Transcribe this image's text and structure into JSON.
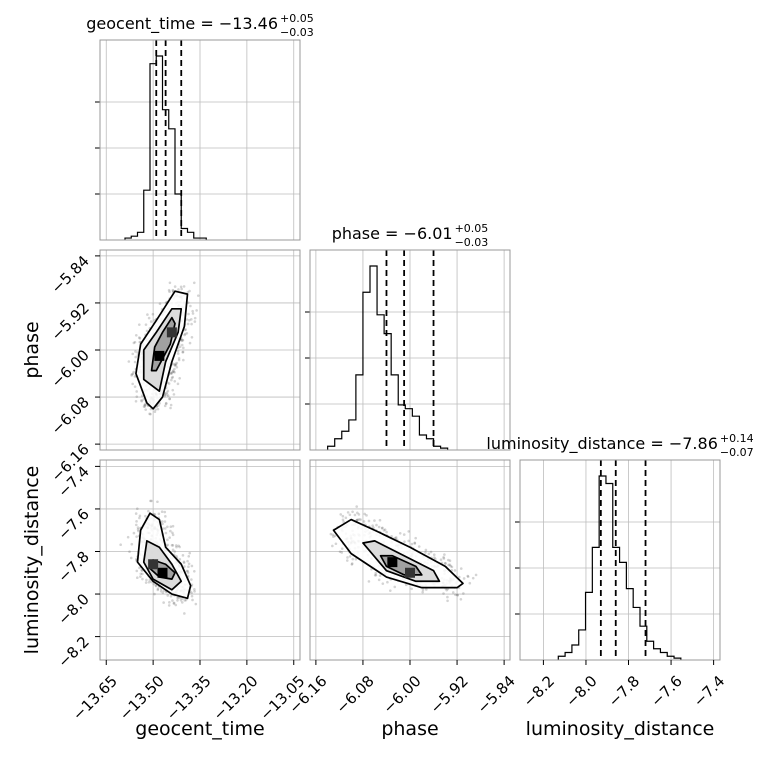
{
  "chart_data": {
    "type": "corner",
    "grid": true,
    "parameters": [
      {
        "name": "geocent_time",
        "title_main": "geocent_time = −13.46",
        "title_plus": "+0.05",
        "title_minus": "−0.03",
        "range": [
          -13.67,
          -13.03
        ],
        "ticks": [
          -13.65,
          -13.5,
          -13.35,
          -13.2,
          -13.05
        ],
        "tick_labels": [
          "−13.65",
          "−13.50",
          "−13.35",
          "−13.20",
          "−13.05"
        ],
        "quantiles": [
          -13.49,
          -13.46,
          -13.41
        ],
        "hist": {
          "x0": -13.59,
          "bin_width": 0.02,
          "counts": [
            0.5,
            1,
            2,
            13,
            46,
            48,
            34,
            29,
            12,
            3,
            2,
            0.5,
            0.5
          ]
        }
      },
      {
        "name": "phase",
        "title_main": "phase = −6.01",
        "title_plus": "+0.05",
        "title_minus": "−0.03",
        "range": [
          -6.17,
          -5.83
        ],
        "ticks": [
          -6.16,
          -6.08,
          -6.0,
          -5.92,
          -5.84
        ],
        "tick_labels": [
          "−6.16",
          "−6.08",
          "−6.00",
          "−5.92",
          "−5.84"
        ],
        "quantiles": [
          -6.04,
          -6.01,
          -5.96
        ],
        "hist": {
          "x0": -6.14,
          "bin_width": 0.012,
          "counts": [
            1,
            3,
            5,
            8,
            20,
            42,
            49,
            36,
            31,
            20,
            12,
            11,
            9,
            4,
            3,
            1,
            0.5
          ]
        }
      },
      {
        "name": "luminosity_distance",
        "title_main": "luminosity_distance = −7.86",
        "title_plus": "+0.14",
        "title_minus": "−0.07",
        "range": [
          -8.31,
          -7.37
        ],
        "ticks": [
          -8.2,
          -8.0,
          -7.8,
          -7.6,
          -7.4
        ],
        "tick_labels": [
          "−8.2",
          "−8.0",
          "−7.8",
          "−7.6",
          "−7.4"
        ],
        "quantiles": [
          -7.93,
          -7.86,
          -7.72
        ],
        "hist": {
          "x0": -8.13,
          "bin_width": 0.032,
          "counts": [
            1,
            2,
            4,
            8,
            18,
            30,
            49,
            47,
            30,
            26,
            19,
            14,
            9,
            5,
            3,
            2,
            1,
            0.5
          ]
        }
      }
    ],
    "pairs": [
      {
        "x_param": "geocent_time",
        "y_param": "phase",
        "peak": [
          -13.48,
          -6.01
        ],
        "density_peaks": [
          [
            -13.48,
            -6.01
          ],
          [
            -13.44,
            -5.97
          ]
        ],
        "levels": [
          [
            [
              -13.505,
              -6.035
            ],
            [
              -13.495,
              -5.995
            ],
            [
              -13.47,
              -5.97
            ],
            [
              -13.44,
              -5.945
            ],
            [
              -13.43,
              -5.955
            ],
            [
              -13.445,
              -5.99
            ],
            [
              -13.47,
              -6.015
            ],
            [
              -13.49,
              -6.035
            ]
          ],
          [
            [
              -13.53,
              -6.05
            ],
            [
              -13.53,
              -6.0
            ],
            [
              -13.49,
              -5.97
            ],
            [
              -13.44,
              -5.93
            ],
            [
              -13.41,
              -5.93
            ],
            [
              -13.42,
              -5.97
            ],
            [
              -13.46,
              -6.02
            ],
            [
              -13.48,
              -6.07
            ]
          ],
          [
            [
              -13.52,
              -6.09
            ],
            [
              -13.555,
              -6.04
            ],
            [
              -13.54,
              -5.99
            ],
            [
              -13.49,
              -5.95
            ],
            [
              -13.43,
              -5.9
            ],
            [
              -13.39,
              -5.905
            ],
            [
              -13.4,
              -5.96
            ],
            [
              -13.44,
              -6.02
            ],
            [
              -13.47,
              -6.08
            ],
            [
              -13.5,
              -6.1
            ]
          ]
        ]
      },
      {
        "x_param": "geocent_time",
        "y_param": "luminosity_distance",
        "peak": [
          -13.47,
          -7.9
        ],
        "density_peaks": [
          [
            -13.47,
            -7.9
          ],
          [
            -13.5,
            -7.86
          ]
        ],
        "levels": [
          [
            [
              -13.51,
              -7.88
            ],
            [
              -13.5,
              -7.84
            ],
            [
              -13.46,
              -7.86
            ],
            [
              -13.43,
              -7.9
            ],
            [
              -13.44,
              -7.93
            ],
            [
              -13.48,
              -7.92
            ]
          ],
          [
            [
              -13.53,
              -7.85
            ],
            [
              -13.52,
              -7.75
            ],
            [
              -13.48,
              -7.78
            ],
            [
              -13.44,
              -7.86
            ],
            [
              -13.41,
              -7.94
            ],
            [
              -13.44,
              -7.98
            ],
            [
              -13.5,
              -7.93
            ]
          ],
          [
            [
              -13.55,
              -7.85
            ],
            [
              -13.54,
              -7.7
            ],
            [
              -13.51,
              -7.62
            ],
            [
              -13.48,
              -7.65
            ],
            [
              -13.46,
              -7.78
            ],
            [
              -13.41,
              -7.86
            ],
            [
              -13.38,
              -7.96
            ],
            [
              -13.39,
              -8.02
            ],
            [
              -13.44,
              -8.0
            ],
            [
              -13.5,
              -7.94
            ]
          ]
        ]
      },
      {
        "x_param": "phase",
        "y_param": "luminosity_distance",
        "peak": [
          -6.03,
          -7.85
        ],
        "density_peaks": [
          [
            -6.03,
            -7.85
          ],
          [
            -6.0,
            -7.9
          ]
        ],
        "levels": [
          [
            [
              -6.05,
              -7.82
            ],
            [
              -6.03,
              -7.82
            ],
            [
              -5.99,
              -7.87
            ],
            [
              -5.98,
              -7.91
            ],
            [
              -6.01,
              -7.91
            ],
            [
              -6.04,
              -7.87
            ]
          ],
          [
            [
              -6.08,
              -7.76
            ],
            [
              -6.06,
              -7.75
            ],
            [
              -6.01,
              -7.82
            ],
            [
              -5.96,
              -7.89
            ],
            [
              -5.95,
              -7.94
            ],
            [
              -5.99,
              -7.94
            ],
            [
              -6.04,
              -7.89
            ]
          ],
          [
            [
              -6.13,
              -7.7
            ],
            [
              -6.1,
              -7.65
            ],
            [
              -6.06,
              -7.7
            ],
            [
              -6.0,
              -7.78
            ],
            [
              -5.94,
              -7.87
            ],
            [
              -5.91,
              -7.95
            ],
            [
              -5.92,
              -7.97
            ],
            [
              -5.98,
              -7.97
            ],
            [
              -6.04,
              -7.92
            ],
            [
              -6.1,
              -7.81
            ]
          ]
        ]
      }
    ]
  }
}
